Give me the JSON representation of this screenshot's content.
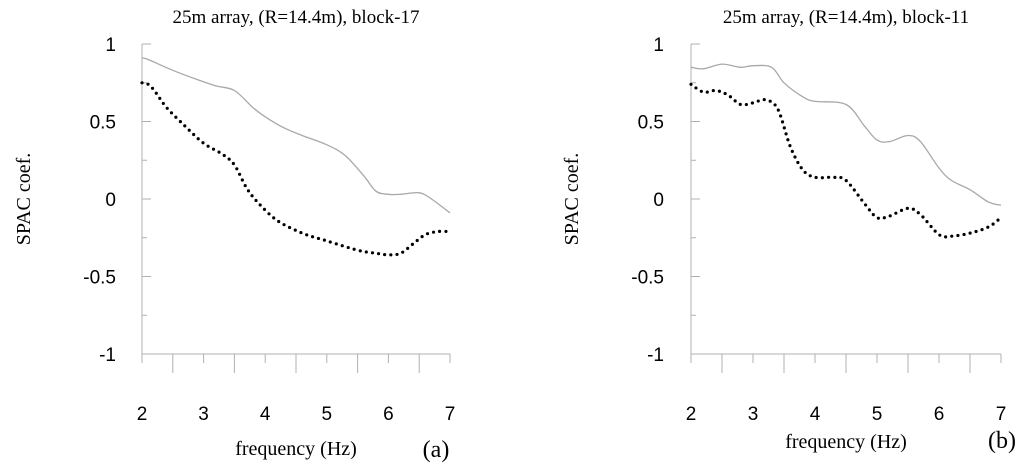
{
  "chart_data": [
    {
      "type": "line",
      "panel_label": "(a)",
      "title": "25m array, (R=14.4m), block-17",
      "xlabel": "frequency (Hz)",
      "ylabel": "SPAC coef.",
      "xlim": [
        2,
        7
      ],
      "ylim": [
        -1,
        1
      ],
      "xticks": [
        "2",
        "3",
        "4",
        "5",
        "6",
        "7"
      ],
      "yticks": [
        "1",
        "0.5",
        "0",
        "-0.5",
        "-1"
      ],
      "grid": false,
      "colors": {
        "solid": "#a8a8a8",
        "dotted": "#000000"
      },
      "series": [
        {
          "style": "solid",
          "x": [
            2.0,
            2.1,
            2.5,
            2.9,
            3.2,
            3.5,
            3.8,
            4.0,
            4.3,
            4.6,
            5.0,
            5.3,
            5.6,
            5.8,
            6.0,
            6.2,
            6.5,
            6.7,
            7.0
          ],
          "y": [
            0.91,
            0.9,
            0.83,
            0.77,
            0.73,
            0.7,
            0.59,
            0.53,
            0.46,
            0.41,
            0.35,
            0.28,
            0.15,
            0.05,
            0.03,
            0.03,
            0.04,
            0.0,
            -0.09
          ]
        },
        {
          "style": "dotted",
          "x": [
            2.0,
            2.1,
            2.2,
            2.4,
            2.7,
            3.0,
            3.3,
            3.5,
            3.7,
            3.9,
            4.2,
            4.6,
            5.0,
            5.5,
            5.8,
            6.0,
            6.2,
            6.4,
            6.6,
            6.8,
            7.0
          ],
          "y": [
            0.75,
            0.74,
            0.7,
            0.59,
            0.47,
            0.36,
            0.29,
            0.22,
            0.07,
            -0.03,
            -0.14,
            -0.22,
            -0.27,
            -0.33,
            -0.35,
            -0.36,
            -0.35,
            -0.29,
            -0.23,
            -0.21,
            -0.21
          ]
        }
      ]
    },
    {
      "type": "line",
      "panel_label": "(b)",
      "title": "25m array, (R=14.4m), block-11",
      "xlabel": "frequency (Hz)",
      "ylabel": "SPAC coef.",
      "xlim": [
        2,
        7
      ],
      "ylim": [
        -1,
        1
      ],
      "xticks": [
        "2",
        "3",
        "4",
        "5",
        "6",
        "7"
      ],
      "yticks": [
        "1",
        "0.5",
        "0",
        "-0.5",
        "-1"
      ],
      "grid": false,
      "colors": {
        "solid": "#a8a8a8",
        "dotted": "#000000"
      },
      "series": [
        {
          "style": "solid",
          "x": [
            2.0,
            2.2,
            2.5,
            2.8,
            3.0,
            3.3,
            3.5,
            3.8,
            4.0,
            4.5,
            4.8,
            5.0,
            5.2,
            5.5,
            5.7,
            6.0,
            6.2,
            6.5,
            6.8,
            7.0
          ],
          "y": [
            0.85,
            0.84,
            0.87,
            0.85,
            0.86,
            0.85,
            0.75,
            0.66,
            0.63,
            0.61,
            0.47,
            0.38,
            0.37,
            0.41,
            0.37,
            0.2,
            0.12,
            0.06,
            -0.02,
            -0.04
          ]
        },
        {
          "style": "dotted",
          "x": [
            2.0,
            2.2,
            2.4,
            2.6,
            2.8,
            3.0,
            3.2,
            3.4,
            3.6,
            3.8,
            4.0,
            4.3,
            4.5,
            4.8,
            5.0,
            5.2,
            5.5,
            5.7,
            6.0,
            6.2,
            6.5,
            6.8,
            7.0
          ],
          "y": [
            0.74,
            0.69,
            0.7,
            0.67,
            0.61,
            0.62,
            0.64,
            0.58,
            0.34,
            0.19,
            0.14,
            0.14,
            0.12,
            -0.03,
            -0.12,
            -0.11,
            -0.06,
            -0.1,
            -0.23,
            -0.24,
            -0.22,
            -0.18,
            -0.12
          ]
        }
      ]
    }
  ]
}
